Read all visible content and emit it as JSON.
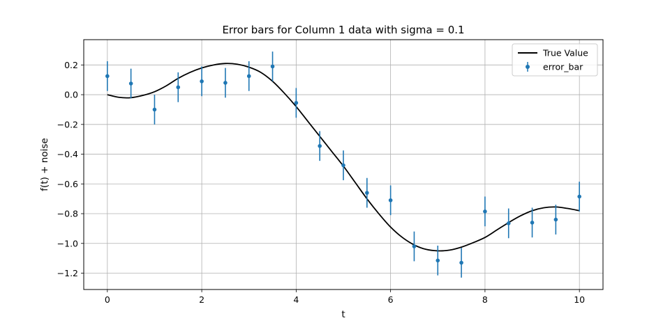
{
  "chart_data": {
    "type": "scatter",
    "title": "Error bars for Column 1 data with sigma = 0.1",
    "xlabel": "t",
    "ylabel": "f(t) + noise",
    "xlim": [
      -0.5,
      10.5
    ],
    "ylim": [
      -1.31,
      0.37
    ],
    "x_ticks": [
      0,
      2,
      4,
      6,
      8,
      10
    ],
    "x_tick_labels": [
      "0",
      "2",
      "4",
      "6",
      "8",
      "10"
    ],
    "y_ticks": [
      0.2,
      0.0,
      -0.2,
      -0.4,
      -0.6,
      -0.8,
      -1.0,
      -1.2
    ],
    "y_tick_labels": [
      "0.2",
      "0.0",
      "−0.2",
      "−0.4",
      "−0.6",
      "−0.8",
      "−1.0",
      "−1.2"
    ],
    "grid": true,
    "legend_position": "top-right",
    "colors": {
      "true_value": "#000000",
      "error_bar": "#1f77b4",
      "grid": "#b0b0b0"
    },
    "series": [
      {
        "name": "True Value",
        "kind": "line",
        "x": [
          0,
          0.25,
          0.5,
          0.75,
          1,
          1.25,
          1.5,
          1.75,
          2,
          2.25,
          2.5,
          2.75,
          3,
          3.25,
          3.5,
          3.75,
          4,
          4.25,
          4.5,
          4.75,
          5,
          5.25,
          5.5,
          5.75,
          6,
          6.25,
          6.5,
          6.75,
          7,
          7.25,
          7.5,
          7.75,
          8,
          8.25,
          8.5,
          8.75,
          9,
          9.25,
          9.5,
          9.75,
          10
        ],
        "y": [
          0.0,
          -0.018,
          -0.02,
          -0.005,
          0.02,
          0.06,
          0.11,
          0.15,
          0.18,
          0.2,
          0.21,
          0.205,
          0.185,
          0.15,
          0.09,
          0.01,
          -0.08,
          -0.18,
          -0.28,
          -0.38,
          -0.48,
          -0.59,
          -0.7,
          -0.8,
          -0.89,
          -0.96,
          -1.01,
          -1.04,
          -1.05,
          -1.045,
          -1.025,
          -0.995,
          -0.96,
          -0.91,
          -0.86,
          -0.815,
          -0.78,
          -0.76,
          -0.755,
          -0.765,
          -0.78
        ]
      },
      {
        "name": "error_bar",
        "kind": "errorbar",
        "x": [
          0,
          0.5,
          1,
          1.5,
          2,
          2.5,
          3,
          3.5,
          4,
          4.5,
          5,
          5.5,
          6,
          6.5,
          7,
          7.5,
          8,
          8.5,
          9,
          9.5,
          10
        ],
        "y": [
          0.125,
          0.075,
          -0.1,
          0.05,
          0.09,
          0.08,
          0.125,
          0.19,
          -0.055,
          -0.345,
          -0.475,
          -0.66,
          -0.71,
          -1.02,
          -1.115,
          -1.13,
          -0.785,
          -0.865,
          -0.86,
          -0.84,
          -0.685
        ],
        "yerr": 0.1
      }
    ]
  }
}
